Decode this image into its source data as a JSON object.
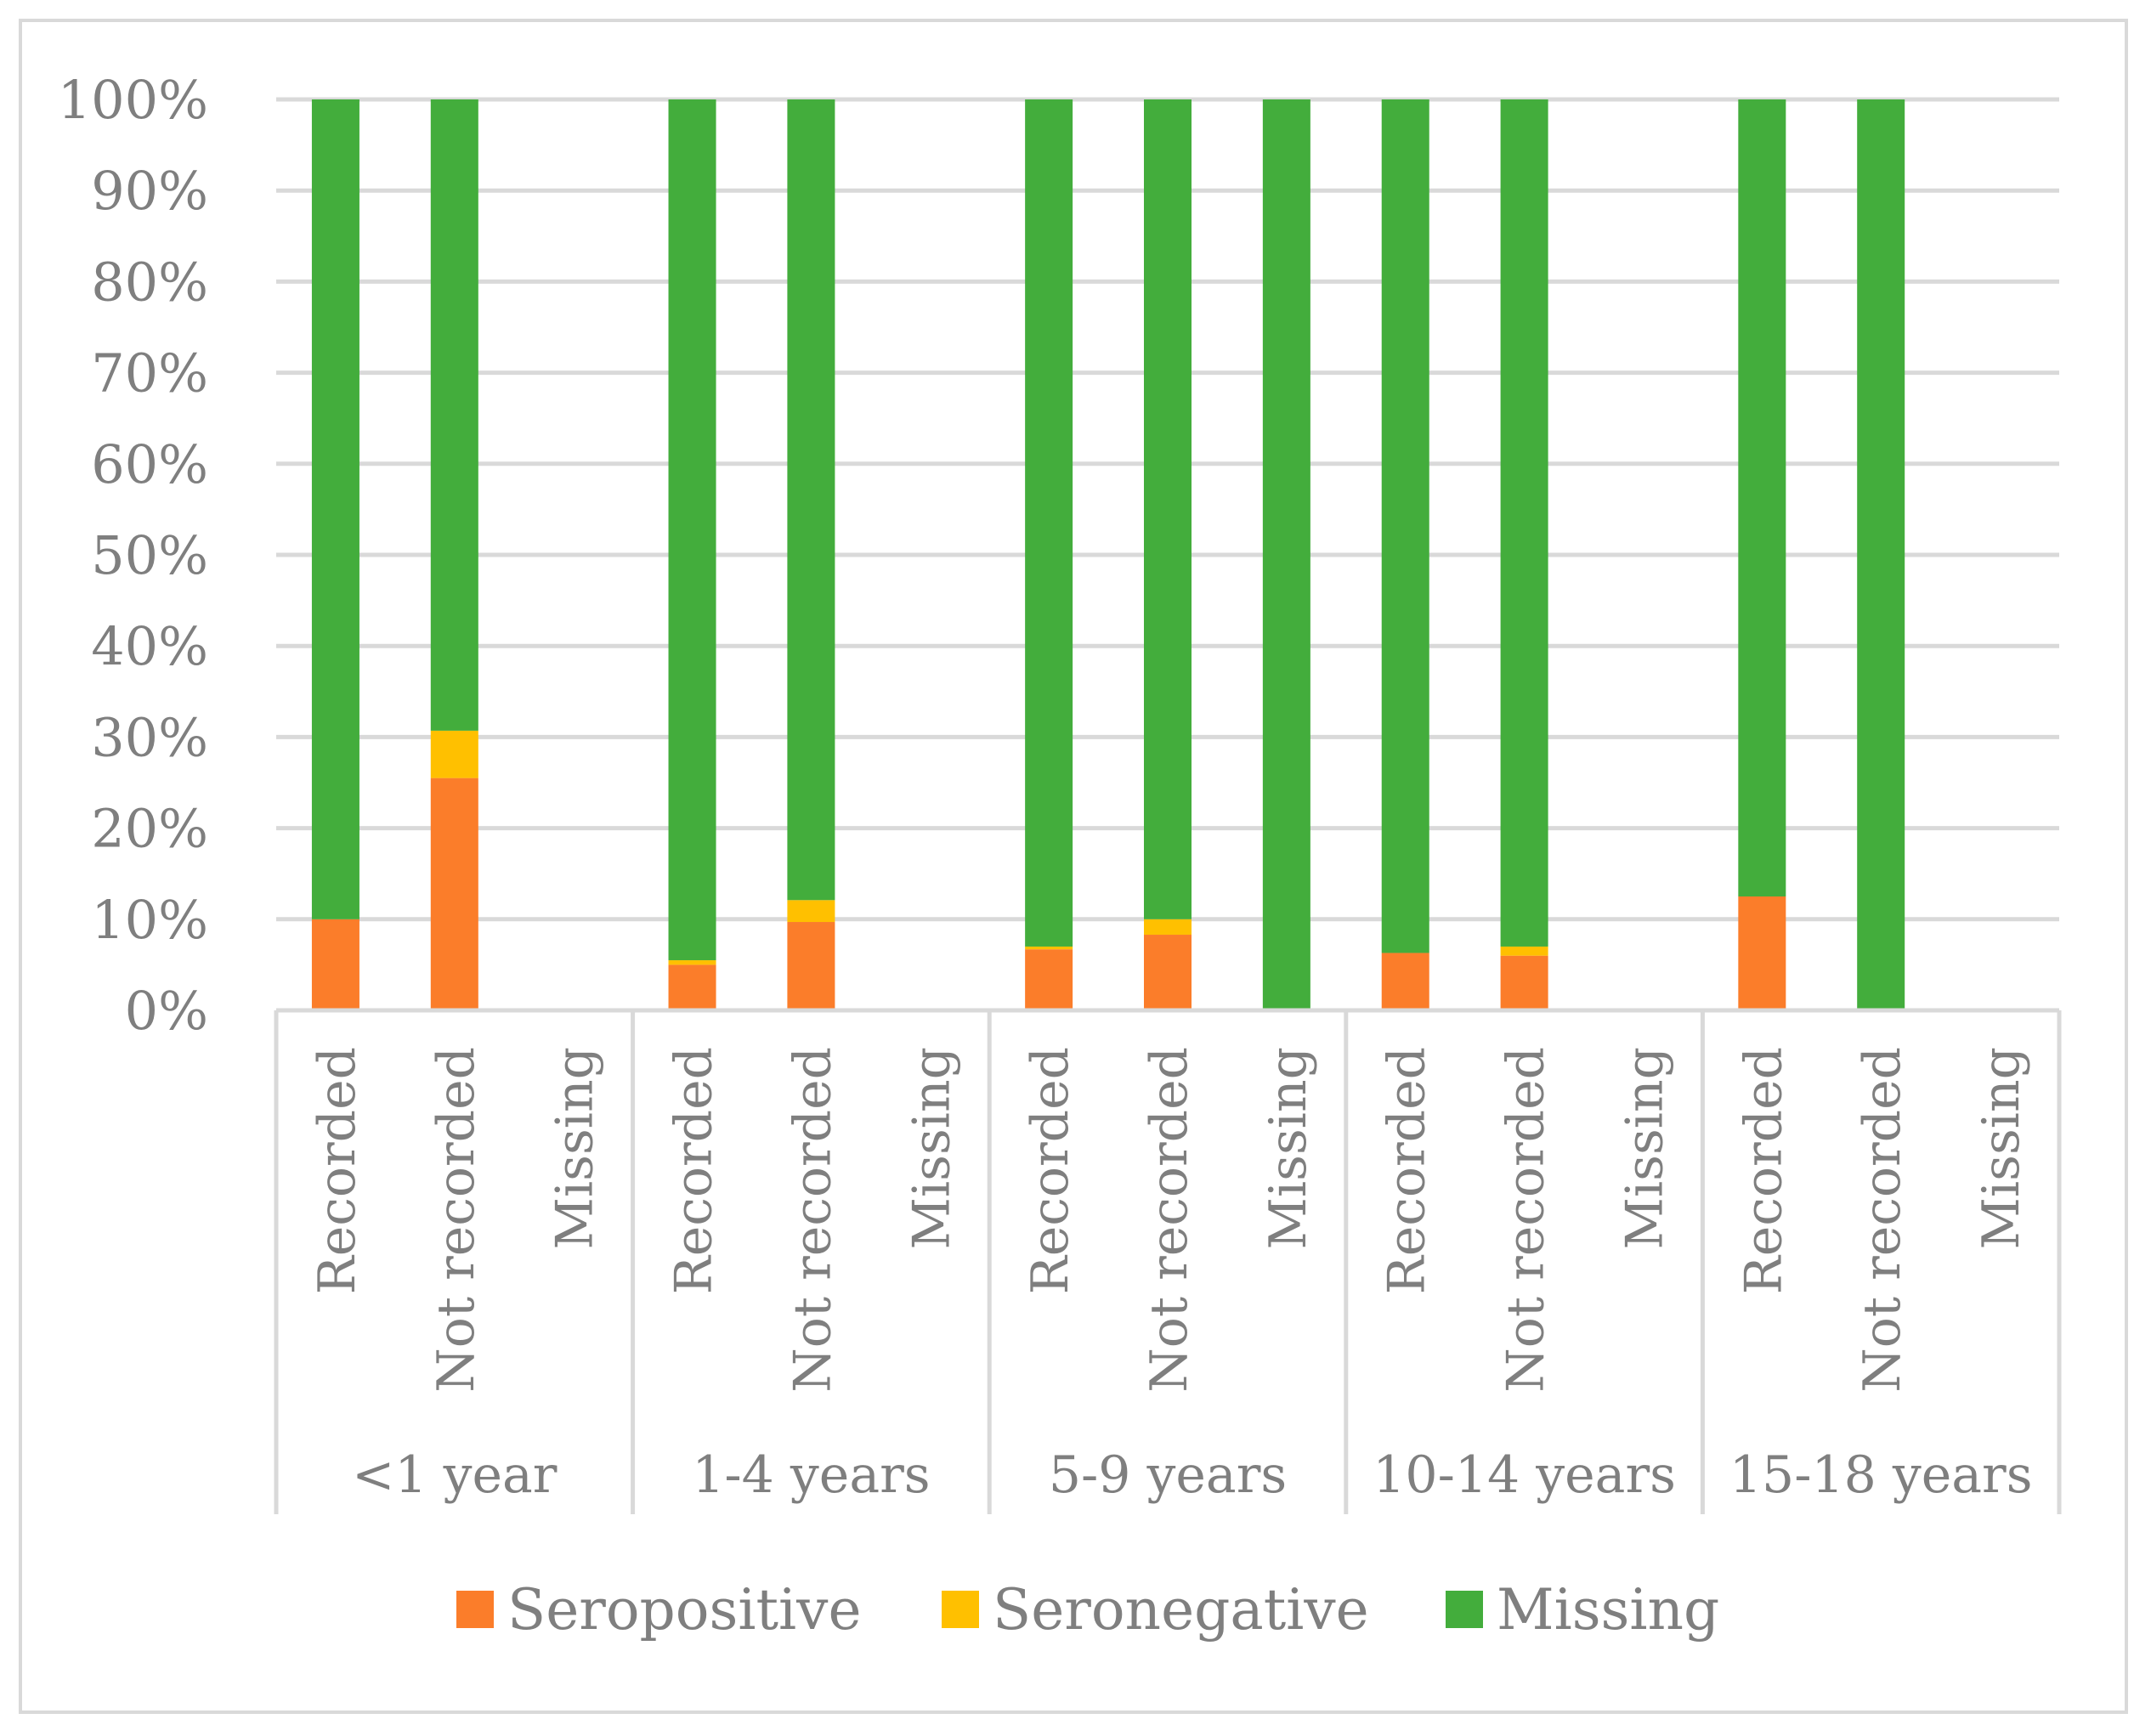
{
  "chart_data": {
    "type": "bar",
    "stacked": true,
    "percent": true,
    "title": "",
    "xlabel": "",
    "ylabel": "",
    "ylim": [
      0,
      100
    ],
    "y_ticks": [
      "0%",
      "10%",
      "20%",
      "30%",
      "40%",
      "50%",
      "60%",
      "70%",
      "80%",
      "90%",
      "100%"
    ],
    "grid": true,
    "legend_position": "bottom",
    "groups": [
      "<1 year",
      "1-4 years",
      "5-9 years",
      "10-14 years",
      "15-18 years"
    ],
    "subcategories": [
      "Recorded",
      "Not recorded",
      "Missing"
    ],
    "series": [
      {
        "name": "Seropositive",
        "color": "#fb7d2a",
        "values": [
          10,
          25.5,
          0,
          5,
          9.7,
          0,
          6.7,
          8.3,
          0,
          6.3,
          6,
          0,
          12.5,
          0,
          0
        ]
      },
      {
        "name": "Seronegative",
        "color": "#ffc000",
        "values": [
          0,
          5.2,
          0,
          0.5,
          2.4,
          0,
          0.3,
          1.7,
          0,
          0,
          1,
          0,
          0,
          0,
          0
        ]
      },
      {
        "name": "Missing",
        "color": "#43ad3c",
        "values": [
          90,
          69.3,
          0,
          94.5,
          87.9,
          0,
          93,
          90,
          100,
          93.7,
          93,
          0,
          87.5,
          100,
          0
        ]
      }
    ]
  }
}
